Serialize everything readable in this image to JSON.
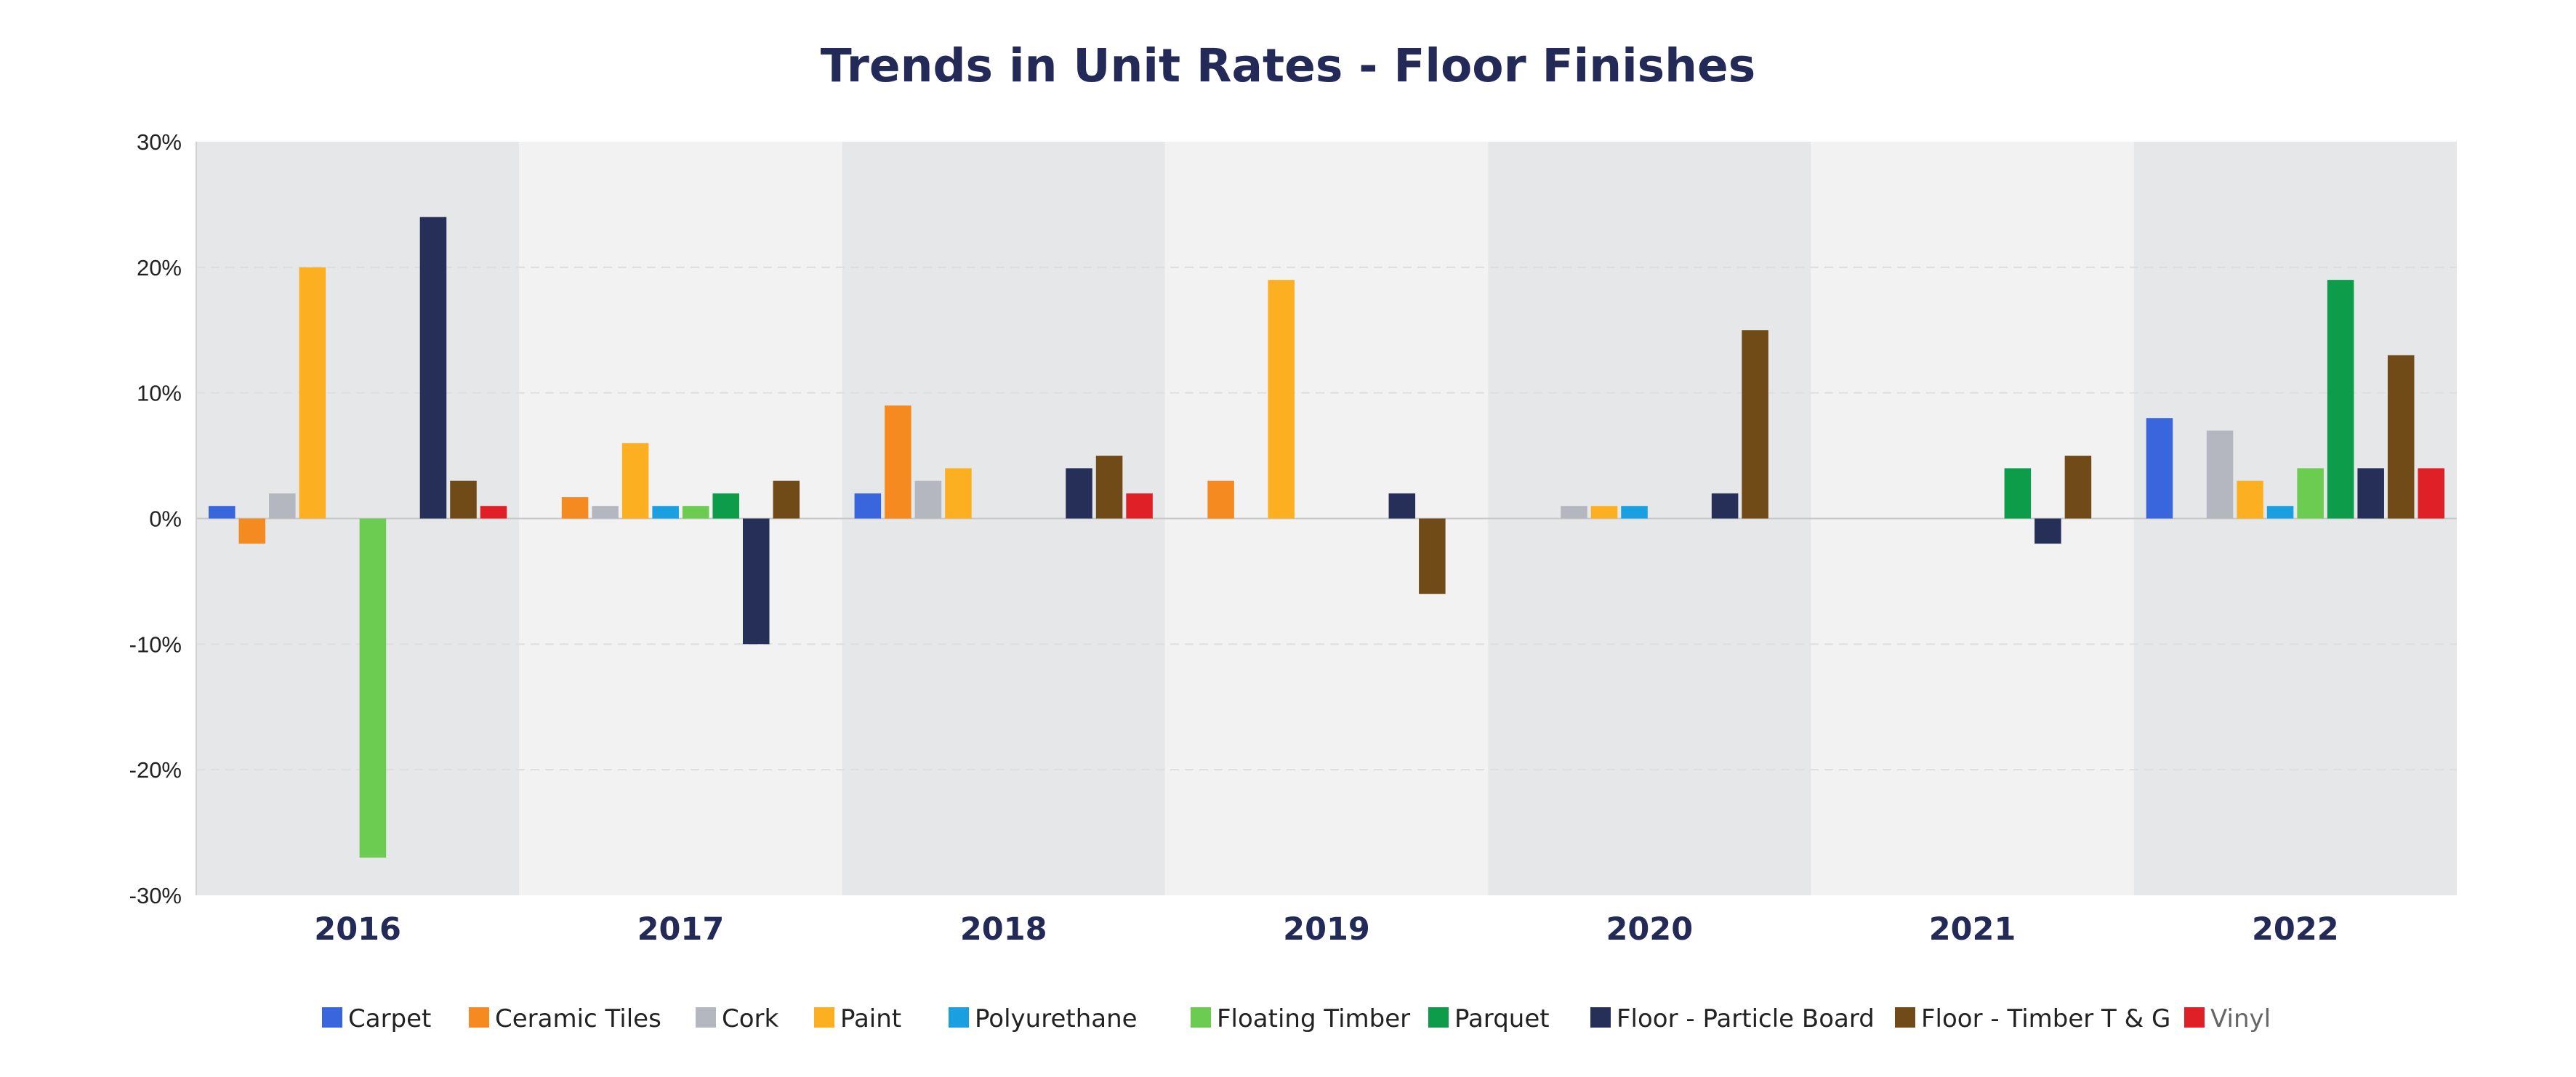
{
  "chart_data": {
    "type": "bar",
    "title": "Trends in Unit Rates - Floor Finishes",
    "xlabel": "",
    "ylabel": "",
    "categories": [
      "2016",
      "2017",
      "2018",
      "2019",
      "2020",
      "2021",
      "2022"
    ],
    "ylim": [
      -30,
      30
    ],
    "yticks": [
      "30%",
      "20%",
      "10%",
      "0%",
      "-10%",
      "-20%",
      "-30%"
    ],
    "ytick_values": [
      30,
      20,
      10,
      0,
      -10,
      -20,
      -30
    ],
    "grid": true,
    "legend_position": "bottom",
    "series": [
      {
        "name": "Carpet",
        "color": "#3a66dd",
        "values": [
          1,
          null,
          2,
          null,
          null,
          null,
          8
        ]
      },
      {
        "name": "Ceramic Tiles",
        "color": "#f58a21",
        "values": [
          -2,
          1.7,
          9,
          3,
          null,
          null,
          null
        ]
      },
      {
        "name": "Cork",
        "color": "#b4b7c0",
        "values": [
          2,
          1,
          3,
          null,
          1,
          null,
          7
        ]
      },
      {
        "name": "Paint",
        "color": "#fcb021",
        "values": [
          20,
          6,
          4,
          19,
          1,
          null,
          3
        ]
      },
      {
        "name": "Polyurethane",
        "color": "#1aa0e0",
        "values": [
          null,
          1,
          null,
          null,
          1,
          null,
          1
        ]
      },
      {
        "name": "Floating Timber",
        "color": "#6ccc52",
        "values": [
          -27,
          1,
          null,
          null,
          null,
          null,
          4
        ]
      },
      {
        "name": "Parquet",
        "color": "#0d9c4a",
        "values": [
          null,
          2,
          null,
          null,
          null,
          4,
          19
        ]
      },
      {
        "name": "Floor - Particle Board",
        "color": "#262f57",
        "values": [
          24,
          -10,
          4,
          2,
          2,
          -2,
          4
        ]
      },
      {
        "name": "Floor - Timber T & G",
        "color": "#704b17",
        "values": [
          3,
          3,
          5,
          -6,
          15,
          5,
          13
        ]
      },
      {
        "name": "Vinyl",
        "color": "#df2027",
        "values": [
          1,
          null,
          2,
          null,
          null,
          null,
          4
        ]
      }
    ]
  },
  "colors": {
    "title": "#232a57",
    "band_dark": "#e6e7e9",
    "band_light": "#f2f2f2",
    "gridline": "#dedede",
    "zero_line": "#c8c8c8",
    "axis_label": "#232a57",
    "legend_text": "#222222",
    "vinyl_legend_text": "#666666"
  }
}
